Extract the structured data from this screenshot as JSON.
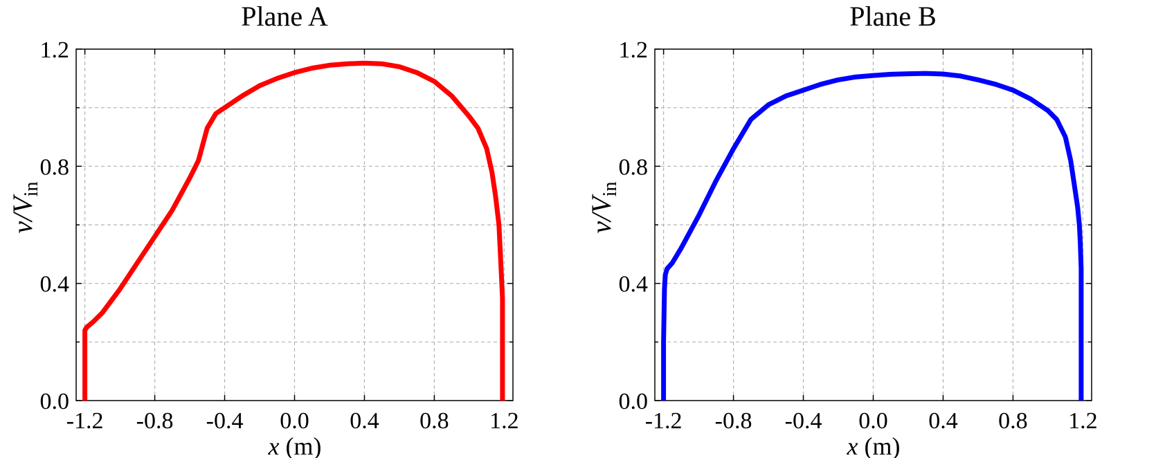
{
  "chart_data": [
    {
      "type": "line",
      "title": "Plane A",
      "xlabel": {
        "var": "x",
        "unit": " (m)"
      },
      "ylabel": {
        "var": "v/V",
        "sub": "in"
      },
      "xlim": [
        -1.25,
        1.25
      ],
      "ylim": [
        0.0,
        1.2
      ],
      "xticks": [
        -1.2,
        -0.8,
        -0.4,
        0.0,
        0.4,
        0.8,
        1.2
      ],
      "xtick_labels": [
        "-1.2",
        "-0.8",
        "-0.4",
        "0.0",
        "0.4",
        "0.8",
        "1.2"
      ],
      "yticks": [
        0.0,
        0.4,
        0.8,
        1.2
      ],
      "ytick_labels": [
        "0.0",
        "0.4",
        "0.8",
        "1.2"
      ],
      "grid": true,
      "series": [
        {
          "color": "#ff0000",
          "x": [
            -1.2,
            -1.2,
            -1.2,
            -1.19,
            -1.15,
            -1.1,
            -1.0,
            -0.9,
            -0.8,
            -0.7,
            -0.6,
            -0.55,
            -0.5,
            -0.45,
            -0.4,
            -0.3,
            -0.2,
            -0.1,
            0.0,
            0.1,
            0.2,
            0.3,
            0.4,
            0.5,
            0.6,
            0.7,
            0.8,
            0.9,
            1.0,
            1.05,
            1.1,
            1.13,
            1.15,
            1.17,
            1.18,
            1.19,
            1.19,
            1.19
          ],
          "y": [
            0.0,
            0.15,
            0.24,
            0.25,
            0.27,
            0.3,
            0.38,
            0.47,
            0.56,
            0.65,
            0.76,
            0.82,
            0.93,
            0.98,
            1.0,
            1.04,
            1.075,
            1.1,
            1.12,
            1.135,
            1.145,
            1.15,
            1.152,
            1.15,
            1.14,
            1.12,
            1.09,
            1.04,
            0.97,
            0.93,
            0.86,
            0.78,
            0.7,
            0.6,
            0.48,
            0.35,
            0.15,
            0.0
          ]
        }
      ]
    },
    {
      "type": "line",
      "title": "Plane B",
      "xlabel": {
        "var": "x",
        "unit": " (m)"
      },
      "ylabel": {
        "var": "v/V",
        "sub": "in"
      },
      "xlim": [
        -1.25,
        1.25
      ],
      "ylim": [
        0.0,
        1.2
      ],
      "xticks": [
        -1.2,
        -0.8,
        -0.4,
        0.0,
        0.4,
        0.8,
        1.2
      ],
      "xtick_labels": [
        "-1.2",
        "-0.8",
        "-0.4",
        "0.0",
        "0.4",
        "0.8",
        "1.2"
      ],
      "yticks": [
        0.0,
        0.4,
        0.8,
        1.2
      ],
      "ytick_labels": [
        "0.0",
        "0.4",
        "0.8",
        "1.2"
      ],
      "grid": true,
      "series": [
        {
          "color": "#0000ff",
          "x": [
            -1.2,
            -1.2,
            -1.195,
            -1.19,
            -1.18,
            -1.15,
            -1.1,
            -1.0,
            -0.9,
            -0.8,
            -0.7,
            -0.6,
            -0.55,
            -0.5,
            -0.4,
            -0.3,
            -0.2,
            -0.1,
            0.0,
            0.1,
            0.2,
            0.3,
            0.4,
            0.5,
            0.6,
            0.7,
            0.8,
            0.9,
            1.0,
            1.05,
            1.1,
            1.13,
            1.15,
            1.17,
            1.18,
            1.185,
            1.19,
            1.19,
            1.19
          ],
          "y": [
            0.0,
            0.2,
            0.38,
            0.43,
            0.45,
            0.47,
            0.52,
            0.63,
            0.75,
            0.86,
            0.96,
            1.01,
            1.025,
            1.04,
            1.06,
            1.08,
            1.095,
            1.105,
            1.11,
            1.114,
            1.116,
            1.117,
            1.115,
            1.108,
            1.095,
            1.08,
            1.06,
            1.03,
            0.99,
            0.96,
            0.9,
            0.82,
            0.74,
            0.66,
            0.6,
            0.54,
            0.45,
            0.2,
            0.0
          ]
        }
      ]
    }
  ]
}
